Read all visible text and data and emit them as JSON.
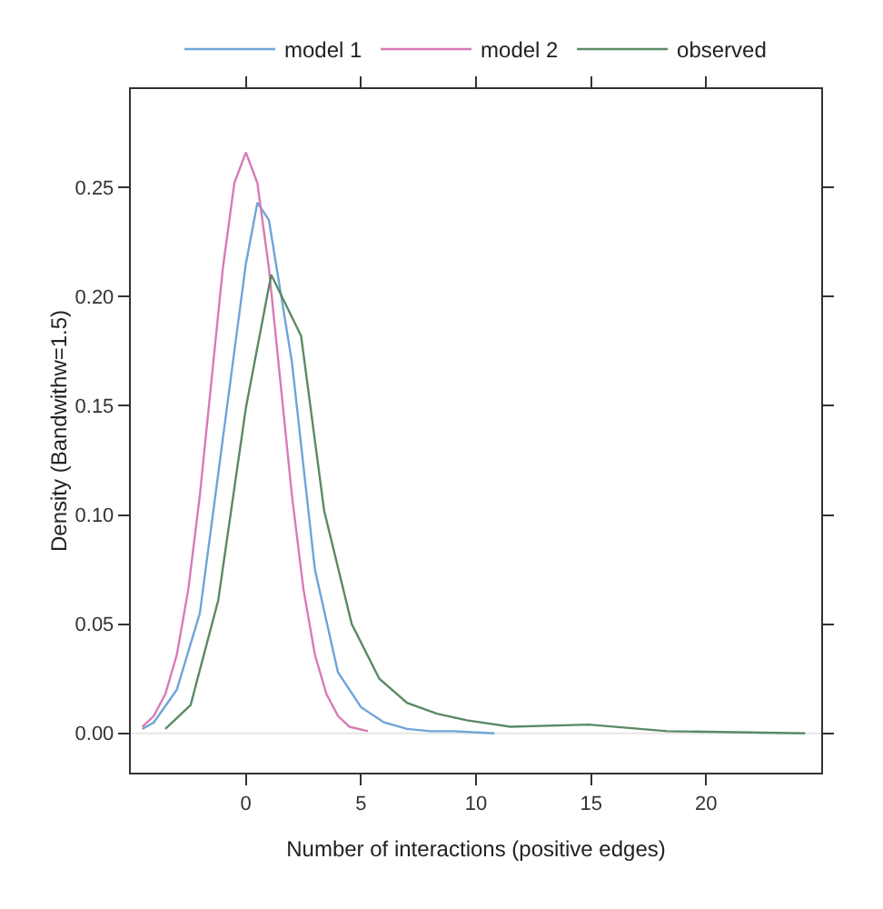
{
  "chart_data": {
    "type": "line",
    "xlabel": "Number of interactions (positive edges)",
    "ylabel": "Density (Bandwithw=1.5)",
    "xlim": [
      -5,
      25
    ],
    "xticks": [
      0,
      5,
      10,
      15,
      20
    ],
    "ylim": [
      -0.018,
      0.295
    ],
    "yticks": [
      {
        "value": 0,
        "label": "0.00"
      },
      {
        "value": 0.05,
        "label": "0.05"
      },
      {
        "value": 0.1,
        "label": "0.10"
      },
      {
        "value": 0.15,
        "label": "0.15"
      },
      {
        "value": 0.2,
        "label": "0.20"
      },
      {
        "value": 0.25,
        "label": "0.25"
      }
    ],
    "grid": false,
    "legend": "top",
    "marker": "none",
    "line_style": "solid",
    "ref_lines": [
      {
        "axis": "y",
        "value": 0,
        "color": "#e6e6e6"
      }
    ],
    "series": [
      {
        "name": "model 1",
        "color": "#6fa4d8",
        "x": [
          -4.5,
          -4,
          -3,
          -2,
          -1,
          0,
          0.5,
          1,
          2,
          3,
          4,
          5,
          6,
          7,
          8,
          9,
          10.8
        ],
        "values": [
          0.002,
          0.005,
          0.02,
          0.055,
          0.135,
          0.215,
          0.243,
          0.235,
          0.17,
          0.075,
          0.028,
          0.012,
          0.005,
          0.002,
          0.001,
          0.001,
          0
        ]
      },
      {
        "name": "model 2",
        "color": "#d77bb6",
        "x": [
          -4.5,
          -4,
          -3.5,
          -3,
          -2.5,
          -2,
          -1.5,
          -1,
          -0.5,
          0,
          0.5,
          1,
          1.5,
          2,
          2.5,
          3,
          3.5,
          4,
          4.5,
          5.3
        ],
        "values": [
          0.003,
          0.008,
          0.018,
          0.036,
          0.066,
          0.109,
          0.161,
          0.213,
          0.252,
          0.266,
          0.252,
          0.213,
          0.161,
          0.109,
          0.066,
          0.036,
          0.018,
          0.008,
          0.003,
          0.001
        ]
      },
      {
        "name": "observed",
        "color": "#5a8a64",
        "x": [
          -3.5,
          -2.4,
          -1.2,
          0,
          1.1,
          2.4,
          3.4,
          4.6,
          5.8,
          7,
          8.3,
          9.6,
          11.5,
          14.9,
          18.3,
          24.3
        ],
        "values": [
          0.002,
          0.013,
          0.061,
          0.149,
          0.21,
          0.182,
          0.102,
          0.05,
          0.025,
          0.014,
          0.009,
          0.006,
          0.003,
          0.004,
          0.001,
          0
        ]
      }
    ]
  }
}
